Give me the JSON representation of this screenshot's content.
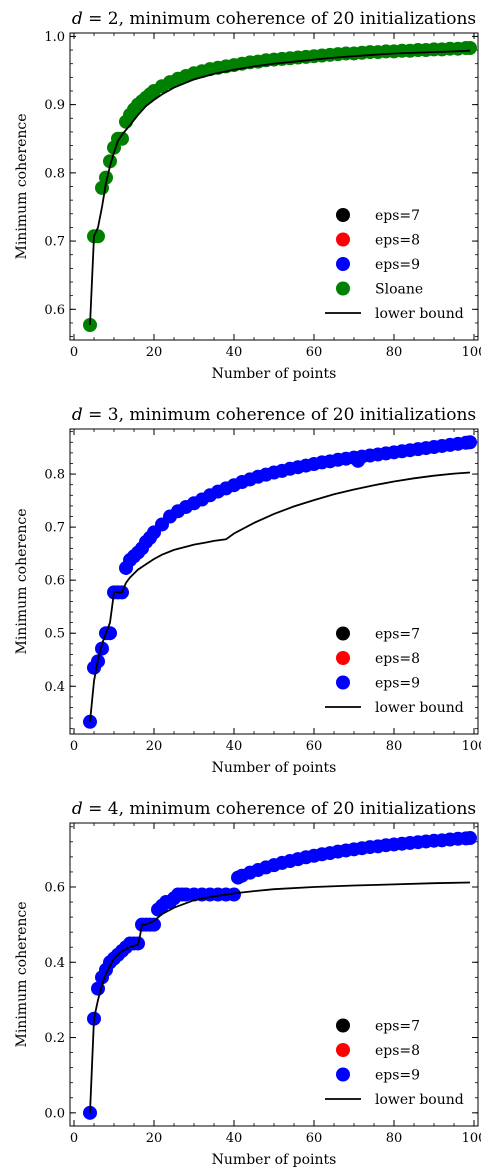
{
  "chart_data": [
    {
      "type": "scatter",
      "title_var": "d",
      "title_rest": " = 2, minimum coherence of 20 initializations",
      "xlabel": "Number of points",
      "ylabel": "Minimum coherence",
      "xlim": [
        -1,
        101
      ],
      "ylim": [
        0.555,
        1.005
      ],
      "xticks": [
        0,
        20,
        40,
        60,
        80,
        100
      ],
      "yticks": [
        0.6,
        0.7,
        0.8,
        0.9,
        1.0
      ],
      "ytick_labels": [
        "0.6",
        "0.7",
        "0.8",
        "0.9",
        "1.0"
      ],
      "legend_position": "lower-right",
      "legend": [
        {
          "label": "eps=7",
          "color": "#000000",
          "kind": "marker"
        },
        {
          "label": "eps=8",
          "color": "#ff0000",
          "kind": "marker"
        },
        {
          "label": "eps=9",
          "color": "#0000ff",
          "kind": "marker"
        },
        {
          "label": "Sloane",
          "color": "#008000",
          "kind": "marker"
        },
        {
          "label": "lower bound",
          "color": "#000000",
          "kind": "line"
        }
      ],
      "series": [
        {
          "name": "Sloane",
          "color": "#008000",
          "x": [
            4,
            5,
            6,
            7,
            8,
            9,
            10,
            11,
            12,
            13,
            14,
            15,
            16,
            17,
            18,
            19,
            20,
            22,
            24,
            26,
            28,
            30,
            32,
            34,
            36,
            38,
            40,
            42,
            44,
            46,
            48,
            50,
            52,
            54,
            56,
            58,
            60,
            62,
            64,
            66,
            68,
            70,
            72,
            74,
            76,
            78,
            80,
            82,
            84,
            86,
            88,
            90,
            92,
            94,
            96,
            98,
            99
          ],
          "y": [
            0.577,
            0.707,
            0.707,
            0.778,
            0.793,
            0.817,
            0.837,
            0.85,
            0.85,
            0.875,
            0.885,
            0.893,
            0.9,
            0.905,
            0.91,
            0.915,
            0.92,
            0.927,
            0.933,
            0.938,
            0.942,
            0.946,
            0.949,
            0.952,
            0.954,
            0.956,
            0.958,
            0.96,
            0.962,
            0.963,
            0.965,
            0.966,
            0.967,
            0.968,
            0.969,
            0.97,
            0.971,
            0.972,
            0.973,
            0.974,
            0.975,
            0.975,
            0.976,
            0.977,
            0.977,
            0.978,
            0.978,
            0.979,
            0.979,
            0.98,
            0.98,
            0.981,
            0.981,
            0.982,
            0.982,
            0.983,
            0.983
          ]
        }
      ],
      "lower_bound": {
        "x": [
          4,
          5,
          6,
          7,
          8,
          9,
          10,
          11,
          12,
          14,
          16,
          18,
          20,
          22,
          25,
          30,
          35,
          40,
          45,
          50,
          55,
          60,
          65,
          70,
          75,
          80,
          85,
          90,
          95,
          99
        ],
        "y": [
          0.577,
          0.707,
          0.72,
          0.75,
          0.785,
          0.81,
          0.83,
          0.847,
          0.856,
          0.87,
          0.885,
          0.898,
          0.907,
          0.915,
          0.925,
          0.937,
          0.945,
          0.951,
          0.956,
          0.96,
          0.963,
          0.966,
          0.969,
          0.971,
          0.973,
          0.975,
          0.976,
          0.977,
          0.978,
          0.979
        ]
      }
    },
    {
      "type": "scatter",
      "title_var": "d",
      "title_rest": " = 3, minimum coherence of 20 initializations",
      "xlabel": "Number of points",
      "ylabel": "Minimum coherence",
      "xlim": [
        -1,
        101
      ],
      "ylim": [
        0.31,
        0.885
      ],
      "xticks": [
        0,
        20,
        40,
        60,
        80,
        100
      ],
      "yticks": [
        0.4,
        0.5,
        0.6,
        0.7,
        0.8
      ],
      "ytick_labels": [
        "0.4",
        "0.5",
        "0.6",
        "0.7",
        "0.8"
      ],
      "legend_position": "lower-right",
      "legend": [
        {
          "label": "eps=7",
          "color": "#000000",
          "kind": "marker"
        },
        {
          "label": "eps=8",
          "color": "#ff0000",
          "kind": "marker"
        },
        {
          "label": "eps=9",
          "color": "#0000ff",
          "kind": "marker"
        },
        {
          "label": "lower bound",
          "color": "#000000",
          "kind": "line"
        }
      ],
      "series": [
        {
          "name": "eps=9",
          "color": "#0000ff",
          "x": [
            4,
            5,
            6,
            7,
            8,
            9,
            10,
            11,
            12,
            13,
            14,
            15,
            16,
            17,
            18,
            19,
            20,
            22,
            24,
            26,
            28,
            30,
            32,
            34,
            36,
            38,
            40,
            42,
            44,
            46,
            48,
            50,
            52,
            54,
            56,
            58,
            60,
            62,
            64,
            66,
            68,
            70,
            71,
            72,
            74,
            76,
            78,
            80,
            82,
            84,
            86,
            88,
            90,
            92,
            94,
            96,
            98,
            99
          ],
          "y": [
            0.333,
            0.435,
            0.447,
            0.471,
            0.5,
            0.5,
            0.577,
            0.577,
            0.577,
            0.623,
            0.638,
            0.645,
            0.652,
            0.66,
            0.672,
            0.68,
            0.69,
            0.705,
            0.72,
            0.73,
            0.738,
            0.745,
            0.752,
            0.76,
            0.767,
            0.773,
            0.779,
            0.785,
            0.79,
            0.795,
            0.799,
            0.803,
            0.806,
            0.81,
            0.813,
            0.816,
            0.819,
            0.822,
            0.824,
            0.827,
            0.829,
            0.831,
            0.825,
            0.833,
            0.835,
            0.837,
            0.839,
            0.841,
            0.843,
            0.845,
            0.847,
            0.849,
            0.851,
            0.853,
            0.855,
            0.857,
            0.859,
            0.86
          ]
        }
      ],
      "lower_bound": {
        "x": [
          4,
          5,
          6,
          7,
          8,
          9,
          10,
          11,
          12,
          13,
          14,
          16,
          18,
          20,
          22,
          25,
          28,
          30,
          33,
          35,
          38,
          40,
          45,
          50,
          55,
          60,
          65,
          70,
          75,
          80,
          85,
          90,
          95,
          99
        ],
        "y": [
          0.333,
          0.41,
          0.45,
          0.48,
          0.5,
          0.52,
          0.577,
          0.577,
          0.577,
          0.595,
          0.605,
          0.62,
          0.63,
          0.64,
          0.648,
          0.657,
          0.663,
          0.667,
          0.671,
          0.674,
          0.677,
          0.688,
          0.708,
          0.725,
          0.739,
          0.751,
          0.762,
          0.771,
          0.779,
          0.786,
          0.792,
          0.797,
          0.801,
          0.803
        ]
      }
    },
    {
      "type": "scatter",
      "title_var": "d",
      "title_rest": " = 4, minimum coherence of 20 initializations",
      "xlabel": "Number of points",
      "ylabel": "Minimum coherence",
      "xlim": [
        -1,
        101
      ],
      "ylim": [
        -0.035,
        0.77
      ],
      "xticks": [
        0,
        20,
        40,
        60,
        80,
        100
      ],
      "yticks": [
        0.0,
        0.2,
        0.4,
        0.6
      ],
      "ytick_labels": [
        "0.0",
        "0.2",
        "0.4",
        "0.6"
      ],
      "legend_position": "lower-right",
      "legend": [
        {
          "label": "eps=7",
          "color": "#000000",
          "kind": "marker"
        },
        {
          "label": "eps=8",
          "color": "#ff0000",
          "kind": "marker"
        },
        {
          "label": "eps=9",
          "color": "#0000ff",
          "kind": "marker"
        },
        {
          "label": "lower bound",
          "color": "#000000",
          "kind": "line"
        }
      ],
      "series": [
        {
          "name": "eps=9",
          "color": "#0000ff",
          "x": [
            4,
            5,
            6,
            7,
            8,
            9,
            10,
            11,
            12,
            13,
            14,
            15,
            16,
            17,
            18,
            19,
            20,
            21,
            22,
            23,
            24,
            25,
            26,
            27,
            28,
            30,
            32,
            34,
            36,
            38,
            40,
            41,
            42,
            44,
            46,
            48,
            50,
            52,
            54,
            56,
            58,
            60,
            62,
            64,
            66,
            68,
            70,
            72,
            74,
            76,
            78,
            80,
            82,
            84,
            86,
            88,
            90,
            92,
            94,
            96,
            98,
            99
          ],
          "y": [
            0.0,
            0.25,
            0.33,
            0.36,
            0.38,
            0.4,
            0.41,
            0.42,
            0.43,
            0.44,
            0.45,
            0.45,
            0.45,
            0.5,
            0.5,
            0.5,
            0.5,
            0.54,
            0.55,
            0.56,
            0.56,
            0.57,
            0.58,
            0.58,
            0.58,
            0.58,
            0.58,
            0.58,
            0.58,
            0.58,
            0.58,
            0.625,
            0.63,
            0.638,
            0.645,
            0.652,
            0.658,
            0.664,
            0.669,
            0.674,
            0.679,
            0.683,
            0.687,
            0.69,
            0.694,
            0.697,
            0.7,
            0.703,
            0.706,
            0.708,
            0.711,
            0.713,
            0.715,
            0.717,
            0.719,
            0.721,
            0.723,
            0.724,
            0.726,
            0.728,
            0.729,
            0.73
          ]
        }
      ],
      "lower_bound": {
        "x": [
          4,
          5,
          6,
          7,
          8,
          9,
          10,
          12,
          14,
          16,
          16.5,
          17,
          18,
          20,
          22,
          25,
          28,
          30,
          35,
          40,
          45,
          50,
          60,
          70,
          80,
          90,
          99
        ],
        "y": [
          0.0,
          0.25,
          0.3,
          0.34,
          0.37,
          0.39,
          0.41,
          0.43,
          0.44,
          0.447,
          0.47,
          0.5,
          0.5,
          0.51,
          0.528,
          0.545,
          0.557,
          0.565,
          0.575,
          0.583,
          0.589,
          0.594,
          0.6,
          0.604,
          0.607,
          0.61,
          0.612
        ]
      }
    }
  ]
}
